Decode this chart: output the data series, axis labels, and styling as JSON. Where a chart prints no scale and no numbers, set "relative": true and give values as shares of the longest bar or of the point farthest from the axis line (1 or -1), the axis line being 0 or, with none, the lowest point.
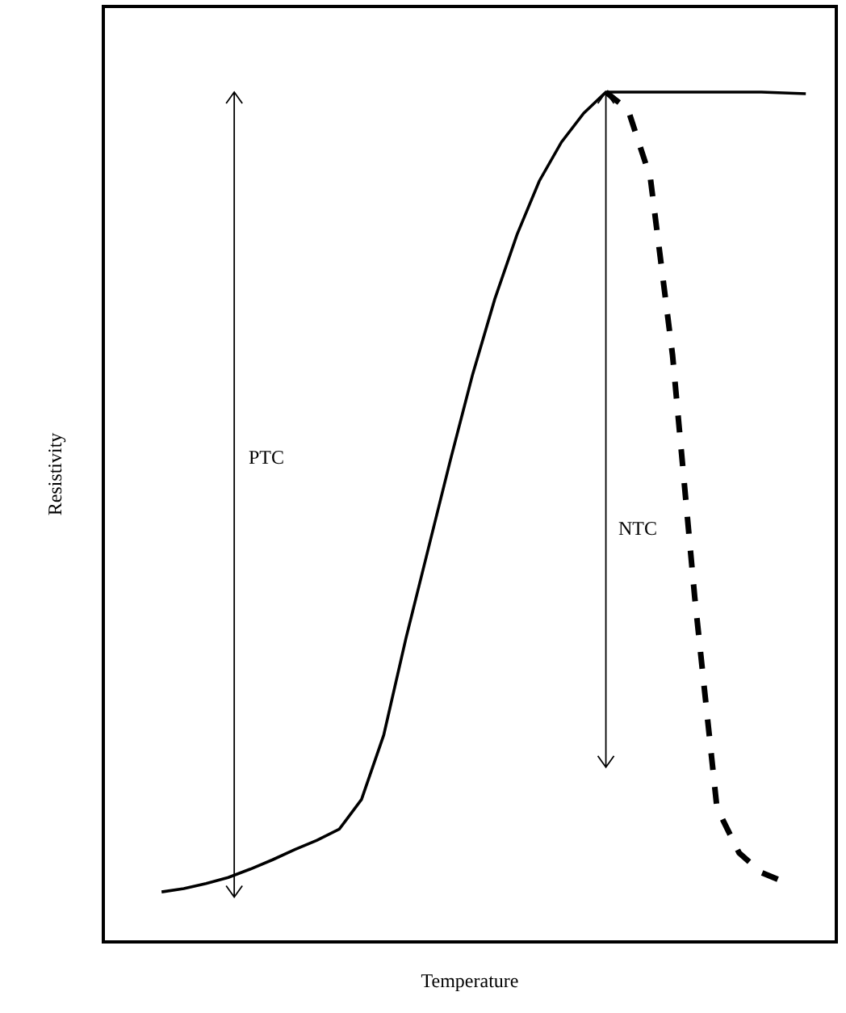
{
  "chart_data": {
    "type": "line",
    "relative": true,
    "xlabel": "Temperature",
    "ylabel": "Resistivity",
    "annotations": [
      "PTC",
      "NTC"
    ],
    "categories": [
      null,
      null,
      null,
      null,
      null,
      null,
      null,
      null,
      null,
      null,
      null,
      null,
      null,
      null,
      null,
      null,
      null,
      null,
      null,
      null,
      null,
      null,
      null,
      null,
      null,
      null,
      null,
      null,
      null,
      null
    ],
    "series": [
      {
        "color": "#000000",
        "line_style": "solid",
        "values": [
          0.057,
          0.061,
          0.067,
          0.074,
          0.084,
          0.095,
          0.107,
          0.118,
          0.131,
          0.166,
          0.242,
          0.356,
          0.461,
          0.566,
          0.667,
          0.756,
          0.832,
          0.895,
          0.941,
          0.975,
          1,
          1,
          1,
          1,
          1,
          1,
          1,
          1,
          0.999,
          0.998
        ]
      },
      {
        "color": "#000000",
        "line_style": "dashed",
        "values": [
          null,
          null,
          null,
          null,
          null,
          null,
          null,
          null,
          null,
          null,
          null,
          null,
          null,
          null,
          null,
          null,
          null,
          null,
          null,
          null,
          1,
          0.979,
          0.899,
          0.69,
          0.404,
          0.156,
          0.103,
          0.08,
          0.069,
          null
        ]
      }
    ],
    "grid": false,
    "marker": "none"
  }
}
